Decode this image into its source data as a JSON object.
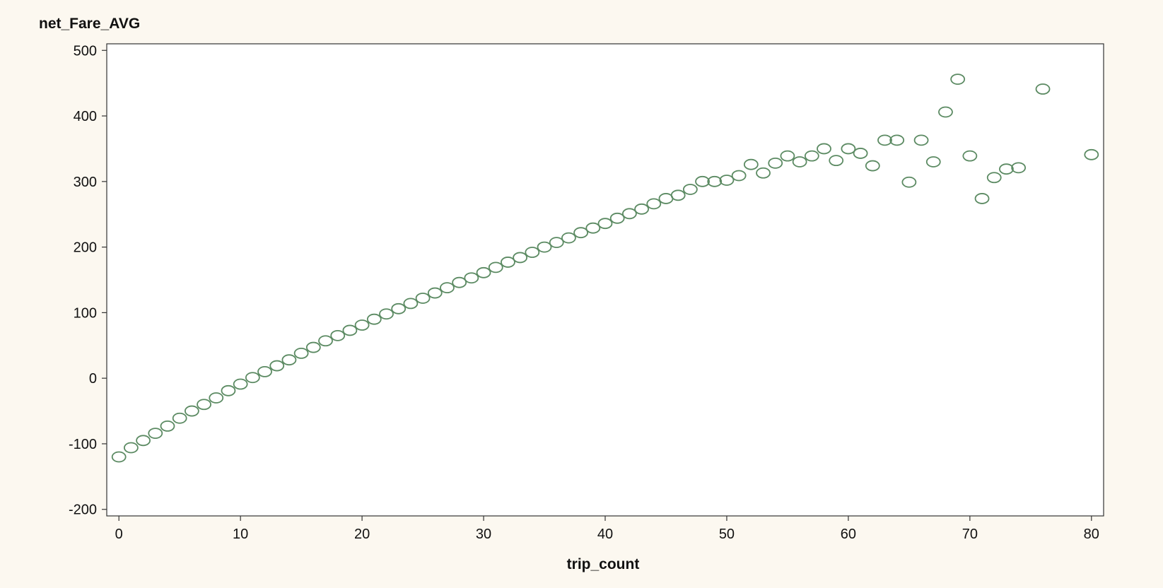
{
  "chart_data": {
    "type": "scatter",
    "title": "",
    "xlabel": "trip_count",
    "ylabel": "net_Fare_AVG",
    "xlim": [
      -1,
      81
    ],
    "ylim": [
      -210,
      510
    ],
    "x_ticks": [
      0,
      10,
      20,
      30,
      40,
      50,
      60,
      70,
      80
    ],
    "y_ticks": [
      -200,
      -100,
      0,
      100,
      200,
      300,
      400,
      500
    ],
    "grid": false,
    "legend": "none",
    "marker": "open-circle",
    "colors": {
      "marker": "#5b8a62",
      "axis": "#333333",
      "plot_background": "#ffffff",
      "page_background": "#fcf8f0"
    },
    "series": [
      {
        "points": [
          [
            0,
            -120
          ],
          [
            1,
            -106
          ],
          [
            2,
            -95
          ],
          [
            3,
            -84
          ],
          [
            4,
            -73
          ],
          [
            5,
            -61
          ],
          [
            6,
            -50
          ],
          [
            7,
            -40
          ],
          [
            8,
            -30
          ],
          [
            9,
            -19
          ],
          [
            10,
            -9
          ],
          [
            11,
            1
          ],
          [
            12,
            10
          ],
          [
            13,
            19
          ],
          [
            14,
            28
          ],
          [
            15,
            38
          ],
          [
            16,
            47
          ],
          [
            17,
            57
          ],
          [
            18,
            65
          ],
          [
            19,
            73
          ],
          [
            20,
            81
          ],
          [
            21,
            90
          ],
          [
            22,
            98
          ],
          [
            23,
            106
          ],
          [
            24,
            114
          ],
          [
            25,
            122
          ],
          [
            26,
            130
          ],
          [
            27,
            138
          ],
          [
            28,
            146
          ],
          [
            29,
            153
          ],
          [
            30,
            161
          ],
          [
            31,
            169
          ],
          [
            32,
            177
          ],
          [
            33,
            184
          ],
          [
            34,
            192
          ],
          [
            35,
            200
          ],
          [
            36,
            207
          ],
          [
            37,
            214
          ],
          [
            38,
            222
          ],
          [
            39,
            229
          ],
          [
            40,
            236
          ],
          [
            41,
            244
          ],
          [
            42,
            251
          ],
          [
            43,
            258
          ],
          [
            44,
            266
          ],
          [
            45,
            274
          ],
          [
            46,
            279
          ],
          [
            47,
            288
          ],
          [
            48,
            300
          ],
          [
            49,
            300
          ],
          [
            50,
            302
          ],
          [
            51,
            309
          ],
          [
            52,
            326
          ],
          [
            53,
            313
          ],
          [
            54,
            328
          ],
          [
            55,
            339
          ],
          [
            56,
            330
          ],
          [
            57,
            339
          ],
          [
            58,
            350
          ],
          [
            59,
            332
          ],
          [
            60,
            350
          ],
          [
            61,
            343
          ],
          [
            62,
            324
          ],
          [
            63,
            363
          ],
          [
            64,
            363
          ],
          [
            65,
            299
          ],
          [
            66,
            363
          ],
          [
            67,
            330
          ],
          [
            68,
            406
          ],
          [
            69,
            456
          ],
          [
            70,
            339
          ],
          [
            71,
            274
          ],
          [
            72,
            306
          ],
          [
            73,
            319
          ],
          [
            74,
            321
          ],
          [
            76,
            441
          ],
          [
            80,
            341
          ]
        ]
      }
    ]
  }
}
